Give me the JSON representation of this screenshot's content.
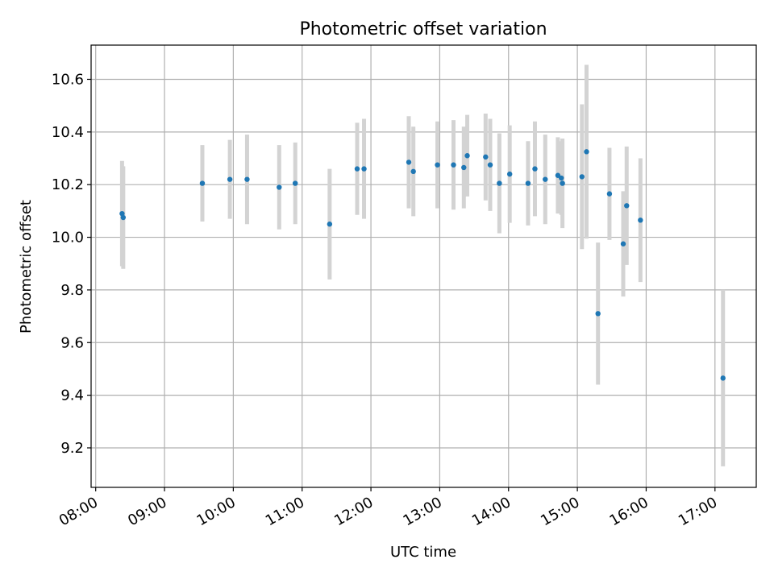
{
  "chart_data": {
    "type": "scatter",
    "title": "Photometric offset variation",
    "xlabel": "UTC time",
    "ylabel": "Photometric offset",
    "x_axis": {
      "kind": "time",
      "lim": [
        "07:56",
        "17:36"
      ],
      "ticks": [
        "08:00",
        "09:00",
        "10:00",
        "11:00",
        "12:00",
        "13:00",
        "14:00",
        "15:00",
        "16:00",
        "17:00"
      ]
    },
    "y_axis": {
      "lim": [
        9.05,
        10.73
      ],
      "ticks": [
        9.2,
        9.4,
        9.6,
        9.8,
        10.0,
        10.2,
        10.4,
        10.6
      ],
      "tick_labels": [
        "9.2",
        "9.4",
        "9.6",
        "9.8",
        "10.0",
        "10.2",
        "10.4",
        "10.6"
      ]
    },
    "grid": true,
    "marker_color": "#1f77b4",
    "errorbar_color": "#d3d3d3",
    "series": [
      {
        "points": [
          {
            "x": "08:23",
            "y": 10.09,
            "err": 0.2
          },
          {
            "x": "08:24",
            "y": 10.075,
            "err": 0.195
          },
          {
            "x": "09:33",
            "y": 10.205,
            "err": 0.145
          },
          {
            "x": "09:57",
            "y": 10.22,
            "err": 0.15
          },
          {
            "x": "10:12",
            "y": 10.22,
            "err": 0.17
          },
          {
            "x": "10:40",
            "y": 10.19,
            "err": 0.16
          },
          {
            "x": "10:54",
            "y": 10.205,
            "err": 0.155
          },
          {
            "x": "11:24",
            "y": 10.05,
            "err": 0.21
          },
          {
            "x": "11:48",
            "y": 10.26,
            "err": 0.175
          },
          {
            "x": "11:54",
            "y": 10.26,
            "err": 0.19
          },
          {
            "x": "12:33",
            "y": 10.285,
            "err": 0.175
          },
          {
            "x": "12:37",
            "y": 10.25,
            "err": 0.17
          },
          {
            "x": "12:58",
            "y": 10.275,
            "err": 0.165
          },
          {
            "x": "13:12",
            "y": 10.275,
            "err": 0.17
          },
          {
            "x": "13:21",
            "y": 10.265,
            "err": 0.155
          },
          {
            "x": "13:24",
            "y": 10.31,
            "err": 0.155
          },
          {
            "x": "13:40",
            "y": 10.305,
            "err": 0.165
          },
          {
            "x": "13:44",
            "y": 10.275,
            "err": 0.175
          },
          {
            "x": "13:52",
            "y": 10.205,
            "err": 0.19
          },
          {
            "x": "14:01",
            "y": 10.24,
            "err": 0.185
          },
          {
            "x": "14:17",
            "y": 10.205,
            "err": 0.16
          },
          {
            "x": "14:23",
            "y": 10.26,
            "err": 0.18
          },
          {
            "x": "14:32",
            "y": 10.22,
            "err": 0.17
          },
          {
            "x": "14:43",
            "y": 10.235,
            "err": 0.145
          },
          {
            "x": "14:46",
            "y": 10.225,
            "err": 0.14
          },
          {
            "x": "14:47",
            "y": 10.205,
            "err": 0.17
          },
          {
            "x": "15:04",
            "y": 10.23,
            "err": 0.275
          },
          {
            "x": "15:08",
            "y": 10.325,
            "err": 0.33
          },
          {
            "x": "15:18",
            "y": 9.71,
            "err": 0.27
          },
          {
            "x": "15:28",
            "y": 10.165,
            "err": 0.175
          },
          {
            "x": "15:40",
            "y": 9.975,
            "err": 0.2
          },
          {
            "x": "15:43",
            "y": 10.12,
            "err": 0.225
          },
          {
            "x": "15:55",
            "y": 10.065,
            "err": 0.235
          },
          {
            "x": "17:07",
            "y": 9.465,
            "err": 0.335
          }
        ]
      }
    ]
  }
}
